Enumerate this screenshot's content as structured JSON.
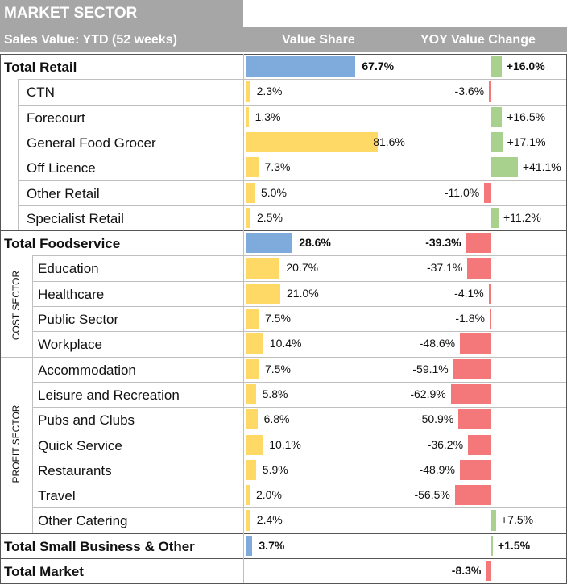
{
  "header": {
    "title": "MARKET SECTOR",
    "subtitle": "Sales Value: YTD (52 weeks)",
    "col_value_share": "Value Share",
    "col_yoy": "YOY Value Change"
  },
  "sector_labels": {
    "cost": "COST SECTOR",
    "profit": "PROFIT SECTOR"
  },
  "colors": {
    "total_share": "#7faadc",
    "sub_share": "#ffd966",
    "positive": "#a9d18e",
    "negative": "#f4777a",
    "header": "#a6a6a6"
  },
  "chart_data": {
    "type": "table",
    "columns": [
      "Market Sector",
      "Value Share",
      "YOY Value Change"
    ],
    "rows": [
      {
        "label": "Total Retail",
        "share": 67.7,
        "share_label": "67.7%",
        "yoy": 16.0,
        "yoy_label": "+16.0%",
        "level": "total"
      },
      {
        "label": "CTN",
        "share": 2.3,
        "share_label": "2.3%",
        "yoy": -3.6,
        "yoy_label": "-3.6%",
        "level": "sub"
      },
      {
        "label": "Forecourt",
        "share": 1.3,
        "share_label": "1.3%",
        "yoy": 16.5,
        "yoy_label": "+16.5%",
        "level": "sub"
      },
      {
        "label": "General Food Grocer",
        "share": 81.6,
        "share_label": "81.6%",
        "yoy": 17.1,
        "yoy_label": "+17.1%",
        "level": "sub"
      },
      {
        "label": "Off Licence",
        "share": 7.3,
        "share_label": "7.3%",
        "yoy": 41.1,
        "yoy_label": "+41.1%",
        "level": "sub"
      },
      {
        "label": "Other Retail",
        "share": 5.0,
        "share_label": "5.0%",
        "yoy": -11.0,
        "yoy_label": "-11.0%",
        "level": "sub"
      },
      {
        "label": "Specialist Retail",
        "share": 2.5,
        "share_label": "2.5%",
        "yoy": 11.2,
        "yoy_label": "+11.2%",
        "level": "sub"
      },
      {
        "label": "Total Foodservice",
        "share": 28.6,
        "share_label": "28.6%",
        "yoy": -39.3,
        "yoy_label": "-39.3%",
        "level": "total"
      },
      {
        "label": "Education",
        "share": 20.7,
        "share_label": "20.7%",
        "yoy": -37.1,
        "yoy_label": "-37.1%",
        "level": "sector"
      },
      {
        "label": "Healthcare",
        "share": 21.0,
        "share_label": "21.0%",
        "yoy": -4.1,
        "yoy_label": "-4.1%",
        "level": "sector"
      },
      {
        "label": "Public Sector",
        "share": 7.5,
        "share_label": "7.5%",
        "yoy": -1.8,
        "yoy_label": "-1.8%",
        "level": "sector"
      },
      {
        "label": "Workplace",
        "share": 10.4,
        "share_label": "10.4%",
        "yoy": -48.6,
        "yoy_label": "-48.6%",
        "level": "sector"
      },
      {
        "label": "Accommodation",
        "share": 7.5,
        "share_label": "7.5%",
        "yoy": -59.1,
        "yoy_label": "-59.1%",
        "level": "sector"
      },
      {
        "label": "Leisure and Recreation",
        "share": 5.8,
        "share_label": "5.8%",
        "yoy": -62.9,
        "yoy_label": "-62.9%",
        "level": "sector"
      },
      {
        "label": "Pubs and Clubs",
        "share": 6.8,
        "share_label": "6.8%",
        "yoy": -50.9,
        "yoy_label": "-50.9%",
        "level": "sector"
      },
      {
        "label": "Quick Service",
        "share": 10.1,
        "share_label": "10.1%",
        "yoy": -36.2,
        "yoy_label": "-36.2%",
        "level": "sector"
      },
      {
        "label": "Restaurants",
        "share": 5.9,
        "share_label": "5.9%",
        "yoy": -48.9,
        "yoy_label": "-48.9%",
        "level": "sector"
      },
      {
        "label": "Travel",
        "share": 2.0,
        "share_label": "2.0%",
        "yoy": -56.5,
        "yoy_label": "-56.5%",
        "level": "sector"
      },
      {
        "label": "Other Catering",
        "share": 2.4,
        "share_label": "2.4%",
        "yoy": 7.5,
        "yoy_label": "+7.5%",
        "level": "sector"
      },
      {
        "label": "Total Small Business & Other",
        "share": 3.7,
        "share_label": "3.7%",
        "yoy": 1.5,
        "yoy_label": "+1.5%",
        "level": "total"
      },
      {
        "label": "Total Market",
        "share": null,
        "share_label": "",
        "yoy": -8.3,
        "yoy_label": "-8.3%",
        "level": "total"
      }
    ]
  }
}
